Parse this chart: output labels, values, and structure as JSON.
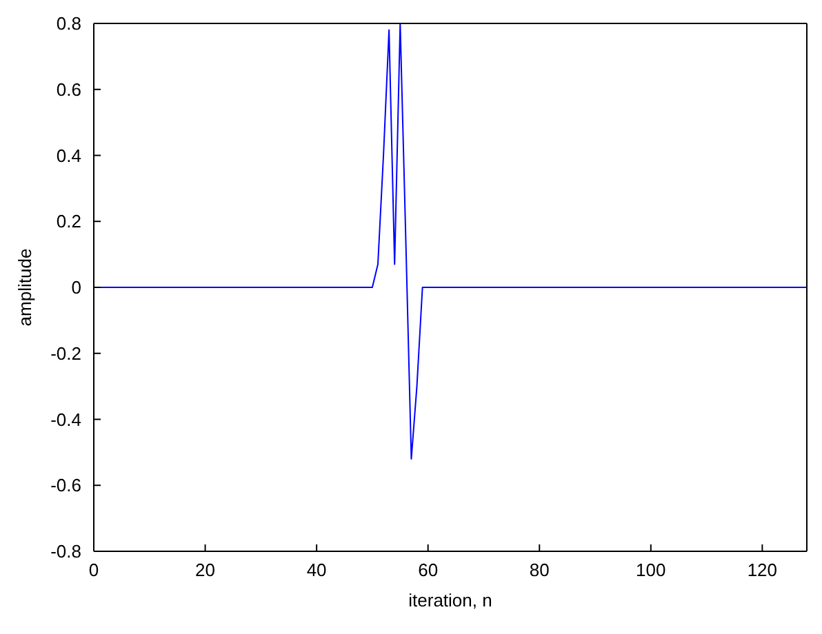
{
  "chart_data": {
    "type": "line",
    "xlabel": "iteration, n",
    "ylabel": "amplitude",
    "x": [
      0,
      50,
      51,
      52,
      53,
      54,
      55,
      56,
      57,
      58,
      59,
      128
    ],
    "series": [
      {
        "color": "#0000ff",
        "values": [
          0,
          0,
          0.07,
          0.4,
          0.78,
          0.07,
          0.8,
          0.15,
          -0.52,
          -0.3,
          0,
          0
        ]
      }
    ],
    "xlim": [
      0,
      128
    ],
    "xticks": [
      0,
      20,
      40,
      60,
      80,
      100,
      120
    ],
    "ylim": [
      -0.8,
      0.8
    ],
    "yticks": [
      -0.8,
      -0.6,
      -0.4,
      -0.2,
      0,
      0.2,
      0.4,
      0.6,
      0.8
    ],
    "grid": false,
    "marker": "none",
    "line_style": "solid"
  }
}
